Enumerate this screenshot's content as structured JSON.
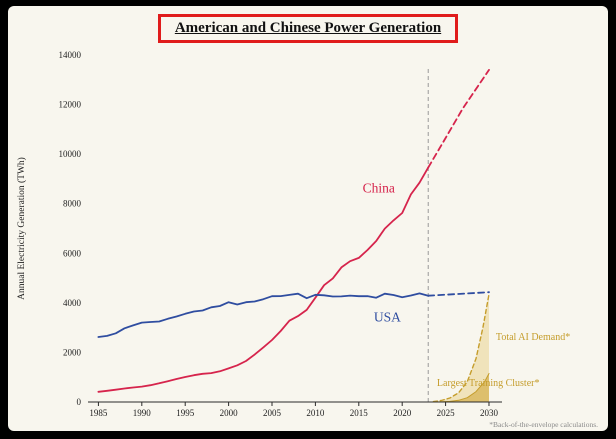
{
  "header": {
    "title": "American and Chinese Power Generation"
  },
  "footnote": "*Back-of-the-envelope calculations.",
  "chart_data": {
    "type": "line",
    "title": "American and Chinese Power Generation",
    "xlabel": "",
    "ylabel": "Annual Electricity Generation (TWh)",
    "xlim": [
      1983.8,
      2031.5
    ],
    "ylim": [
      0,
      14000
    ],
    "xticks": [
      1985,
      1990,
      1995,
      2000,
      2005,
      2010,
      2015,
      2020,
      2025,
      2030
    ],
    "yticks": [
      0,
      2000,
      4000,
      6000,
      8000,
      10000,
      12000,
      14000
    ],
    "grid": false,
    "legend": "inline-labels",
    "present_divider_year": 2023,
    "colors": {
      "china": "#d6244c",
      "usa": "#2f4da0",
      "gold": "#c59d2c",
      "divider": "#9a9a9a"
    },
    "series": [
      {
        "id": "china",
        "name": "China",
        "color": "#d6244c",
        "style": "solid",
        "width": 1.8,
        "x": [
          1985,
          1986,
          1987,
          1988,
          1989,
          1990,
          1991,
          1992,
          1993,
          1994,
          1995,
          1996,
          1997,
          1998,
          1999,
          2000,
          2001,
          2002,
          2003,
          2004,
          2005,
          2006,
          2007,
          2008,
          2009,
          2010,
          2011,
          2012,
          2013,
          2014,
          2015,
          2016,
          2017,
          2018,
          2019,
          2020,
          2021,
          2022,
          2023
        ],
        "values": [
          411,
          450,
          497,
          545,
          585,
          621,
          678,
          754,
          839,
          928,
          1008,
          1081,
          1136,
          1167,
          1239,
          1356,
          1481,
          1654,
          1911,
          2203,
          2500,
          2866,
          3282,
          3467,
          3715,
          4207,
          4713,
          4988,
          5432,
          5680,
          5815,
          6133,
          6495,
          6995,
          7327,
          7624,
          8377,
          8849,
          9456
        ],
        "label": {
          "text": "China",
          "year": 2017.3,
          "value": 8450,
          "anchor": "middle",
          "size": 13.5
        }
      },
      {
        "id": "china-projection",
        "name": "China (projection)",
        "color": "#d6244c",
        "style": "dashed",
        "dash": "6 4",
        "width": 1.8,
        "x": [
          2023,
          2025,
          2027,
          2030
        ],
        "values": [
          9456,
          10650,
          11850,
          13400
        ]
      },
      {
        "id": "usa",
        "name": "USA",
        "color": "#2f4da0",
        "style": "solid",
        "width": 1.8,
        "x": [
          1985,
          1986,
          1987,
          1988,
          1989,
          1990,
          1991,
          1992,
          1993,
          1994,
          1995,
          1996,
          1997,
          1998,
          1999,
          2000,
          2001,
          2002,
          2003,
          2004,
          2005,
          2006,
          2007,
          2008,
          2009,
          2010,
          2011,
          2012,
          2013,
          2014,
          2015,
          2016,
          2017,
          2018,
          2019,
          2020,
          2021,
          2022,
          2023
        ],
        "values": [
          2621,
          2665,
          2772,
          2972,
          3089,
          3203,
          3226,
          3249,
          3355,
          3448,
          3558,
          3652,
          3692,
          3820,
          3873,
          4026,
          3934,
          4026,
          4054,
          4148,
          4268,
          4273,
          4322,
          4369,
          4188,
          4325,
          4306,
          4255,
          4262,
          4294,
          4268,
          4271,
          4210,
          4368,
          4318,
          4230,
          4296,
          4380,
          4288
        ],
        "label": {
          "text": "USA",
          "year": 2018.3,
          "value": 3250,
          "anchor": "middle",
          "size": 13.5
        }
      },
      {
        "id": "usa-projection",
        "name": "USA (projection)",
        "color": "#2f4da0",
        "style": "dashed",
        "dash": "6 4",
        "width": 1.8,
        "x": [
          2023,
          2030
        ],
        "values": [
          4288,
          4430
        ]
      },
      {
        "id": "total-ai-demand",
        "name": "Total AI Demand*",
        "color": "#c59d2c",
        "style": "dashed",
        "dash": "4 3",
        "width": 1.4,
        "fill": "rgba(223,186,80,0.32)",
        "x": [
          2023.6,
          2024.5,
          2025.5,
          2026.5,
          2027.5,
          2028.5,
          2029.3,
          2030
        ],
        "values": [
          15,
          60,
          160,
          370,
          820,
          1750,
          3000,
          4350
        ],
        "label": {
          "text": "Total AI Demand*",
          "year": 2030.8,
          "value": 2500,
          "anchor": "start",
          "size": 10
        }
      },
      {
        "id": "largest-training-cluster",
        "name": "Largest Training Cluster*",
        "color": "#c59d2c",
        "style": "solid",
        "width": 1,
        "fill": "rgba(206,162,45,0.55)",
        "x": [
          2024.3,
          2025.5,
          2026.5,
          2027.5,
          2028.5,
          2029.5,
          2030
        ],
        "values": [
          5,
          25,
          70,
          175,
          420,
          820,
          1150
        ],
        "label": {
          "text": "Largest Training Cluster*",
          "year": 2024.0,
          "value": 640,
          "anchor": "start",
          "size": 10
        }
      }
    ]
  }
}
